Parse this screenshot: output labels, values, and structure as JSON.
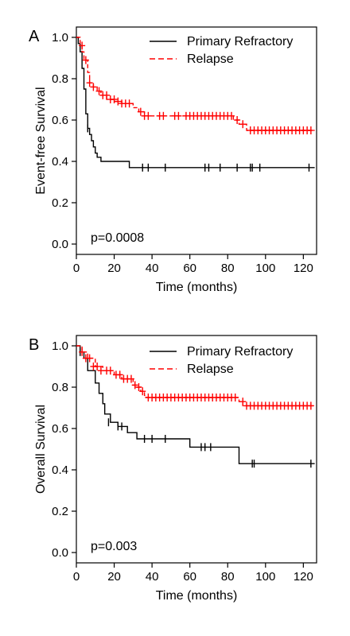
{
  "chart_data": [
    {
      "type": "line",
      "panel_label": "A",
      "xlabel": "Time (months)",
      "ylabel": "Event-free Survival",
      "xlim": [
        0,
        127
      ],
      "ylim": [
        -0.05,
        1.05
      ],
      "xticks": [
        "0",
        "20",
        "40",
        "60",
        "80",
        "100",
        "120"
      ],
      "yticks": [
        "0.0",
        "0.2",
        "0.4",
        "0.6",
        "0.8",
        "1.0"
      ],
      "annotation": "p=0.0008",
      "legend_position": "top-right",
      "series": [
        {
          "name": "Primary Refractory",
          "color": "#000000",
          "dashed": false,
          "steps": [
            [
              0,
              1.0
            ],
            [
              1,
              0.97
            ],
            [
              2,
              0.93
            ],
            [
              3,
              0.85
            ],
            [
              4,
              0.75
            ],
            [
              5,
              0.63
            ],
            [
              6,
              0.56
            ],
            [
              7,
              0.53
            ],
            [
              8,
              0.5
            ],
            [
              9,
              0.47
            ],
            [
              10,
              0.44
            ],
            [
              11,
              0.42
            ],
            [
              13,
              0.4
            ],
            [
              28,
              0.37
            ],
            [
              126,
              0.37
            ]
          ],
          "censored": [
            [
              6,
              0.56
            ],
            [
              35,
              0.37
            ],
            [
              38,
              0.37
            ],
            [
              47,
              0.37
            ],
            [
              68,
              0.37
            ],
            [
              70,
              0.37
            ],
            [
              76,
              0.37
            ],
            [
              85,
              0.37
            ],
            [
              92,
              0.37
            ],
            [
              93,
              0.37
            ],
            [
              97,
              0.37
            ],
            [
              123,
              0.37
            ]
          ]
        },
        {
          "name": "Relapse",
          "color": "#ff0000",
          "dashed": true,
          "steps": [
            [
              0,
              1.0
            ],
            [
              2,
              0.96
            ],
            [
              3,
              0.93
            ],
            [
              4,
              0.89
            ],
            [
              6,
              0.83
            ],
            [
              7,
              0.78
            ],
            [
              9,
              0.76
            ],
            [
              11,
              0.74
            ],
            [
              13,
              0.72
            ],
            [
              16,
              0.7
            ],
            [
              20,
              0.69
            ],
            [
              24,
              0.68
            ],
            [
              30,
              0.66
            ],
            [
              33,
              0.64
            ],
            [
              36,
              0.62
            ],
            [
              83,
              0.6
            ],
            [
              86,
              0.58
            ],
            [
              90,
              0.55
            ],
            [
              126,
              0.55
            ]
          ],
          "censored": [
            [
              3,
              0.96
            ],
            [
              5,
              0.89
            ],
            [
              7,
              0.78
            ],
            [
              9,
              0.76
            ],
            [
              12,
              0.74
            ],
            [
              14,
              0.72
            ],
            [
              16,
              0.72
            ],
            [
              18,
              0.7
            ],
            [
              20,
              0.7
            ],
            [
              22,
              0.69
            ],
            [
              24,
              0.68
            ],
            [
              26,
              0.68
            ],
            [
              28,
              0.68
            ],
            [
              34,
              0.64
            ],
            [
              36,
              0.62
            ],
            [
              38,
              0.62
            ],
            [
              44,
              0.62
            ],
            [
              46,
              0.62
            ],
            [
              52,
              0.62
            ],
            [
              54,
              0.62
            ],
            [
              58,
              0.62
            ],
            [
              60,
              0.62
            ],
            [
              62,
              0.62
            ],
            [
              64,
              0.62
            ],
            [
              66,
              0.62
            ],
            [
              68,
              0.62
            ],
            [
              70,
              0.62
            ],
            [
              72,
              0.62
            ],
            [
              74,
              0.62
            ],
            [
              76,
              0.62
            ],
            [
              78,
              0.62
            ],
            [
              80,
              0.62
            ],
            [
              82,
              0.62
            ],
            [
              85,
              0.6
            ],
            [
              88,
              0.58
            ],
            [
              92,
              0.55
            ],
            [
              94,
              0.55
            ],
            [
              96,
              0.55
            ],
            [
              98,
              0.55
            ],
            [
              100,
              0.55
            ],
            [
              102,
              0.55
            ],
            [
              104,
              0.55
            ],
            [
              106,
              0.55
            ],
            [
              108,
              0.55
            ],
            [
              110,
              0.55
            ],
            [
              112,
              0.55
            ],
            [
              114,
              0.55
            ],
            [
              116,
              0.55
            ],
            [
              118,
              0.55
            ],
            [
              120,
              0.55
            ],
            [
              122,
              0.55
            ],
            [
              124,
              0.55
            ]
          ]
        }
      ]
    },
    {
      "type": "line",
      "panel_label": "B",
      "xlabel": "Time (months)",
      "ylabel": "Overall Survival",
      "xlim": [
        0,
        127
      ],
      "ylim": [
        -0.05,
        1.05
      ],
      "xticks": [
        "0",
        "20",
        "40",
        "60",
        "80",
        "100",
        "120"
      ],
      "yticks": [
        "0.0",
        "0.2",
        "0.4",
        "0.6",
        "0.8",
        "1.0"
      ],
      "annotation": "p=0.003",
      "legend_position": "top-right",
      "series": [
        {
          "name": "Primary Refractory",
          "color": "#000000",
          "dashed": false,
          "steps": [
            [
              0,
              1.0
            ],
            [
              2,
              0.97
            ],
            [
              4,
              0.94
            ],
            [
              6,
              0.88
            ],
            [
              10,
              0.82
            ],
            [
              12,
              0.77
            ],
            [
              14,
              0.72
            ],
            [
              15,
              0.67
            ],
            [
              18,
              0.63
            ],
            [
              22,
              0.61
            ],
            [
              27,
              0.58
            ],
            [
              32,
              0.55
            ],
            [
              60,
              0.51
            ],
            [
              86,
              0.43
            ],
            [
              126,
              0.43
            ]
          ],
          "censored": [
            [
              2,
              0.97
            ],
            [
              17,
              0.63
            ],
            [
              22,
              0.61
            ],
            [
              24,
              0.61
            ],
            [
              36,
              0.55
            ],
            [
              40,
              0.55
            ],
            [
              47,
              0.55
            ],
            [
              66,
              0.51
            ],
            [
              68,
              0.51
            ],
            [
              71,
              0.51
            ],
            [
              93,
              0.43
            ],
            [
              94,
              0.43
            ],
            [
              124,
              0.43
            ]
          ]
        },
        {
          "name": "Relapse",
          "color": "#ff0000",
          "dashed": true,
          "steps": [
            [
              0,
              1.0
            ],
            [
              3,
              0.97
            ],
            [
              6,
              0.94
            ],
            [
              10,
              0.9
            ],
            [
              14,
              0.88
            ],
            [
              20,
              0.86
            ],
            [
              24,
              0.84
            ],
            [
              30,
              0.81
            ],
            [
              32,
              0.8
            ],
            [
              34,
              0.78
            ],
            [
              36,
              0.76
            ],
            [
              37,
              0.75
            ],
            [
              86,
              0.73
            ],
            [
              88,
              0.71
            ],
            [
              126,
              0.71
            ]
          ],
          "censored": [
            [
              3,
              0.97
            ],
            [
              5,
              0.94
            ],
            [
              7,
              0.94
            ],
            [
              9,
              0.9
            ],
            [
              11,
              0.9
            ],
            [
              13,
              0.88
            ],
            [
              16,
              0.88
            ],
            [
              18,
              0.88
            ],
            [
              21,
              0.86
            ],
            [
              23,
              0.86
            ],
            [
              25,
              0.84
            ],
            [
              27,
              0.84
            ],
            [
              29,
              0.84
            ],
            [
              31,
              0.81
            ],
            [
              33,
              0.8
            ],
            [
              35,
              0.78
            ],
            [
              38,
              0.75
            ],
            [
              40,
              0.75
            ],
            [
              42,
              0.75
            ],
            [
              44,
              0.75
            ],
            [
              46,
              0.75
            ],
            [
              48,
              0.75
            ],
            [
              50,
              0.75
            ],
            [
              52,
              0.75
            ],
            [
              54,
              0.75
            ],
            [
              56,
              0.75
            ],
            [
              58,
              0.75
            ],
            [
              60,
              0.75
            ],
            [
              62,
              0.75
            ],
            [
              64,
              0.75
            ],
            [
              66,
              0.75
            ],
            [
              68,
              0.75
            ],
            [
              70,
              0.75
            ],
            [
              72,
              0.75
            ],
            [
              74,
              0.75
            ],
            [
              76,
              0.75
            ],
            [
              78,
              0.75
            ],
            [
              80,
              0.75
            ],
            [
              82,
              0.75
            ],
            [
              84,
              0.75
            ],
            [
              88,
              0.73
            ],
            [
              90,
              0.71
            ],
            [
              92,
              0.71
            ],
            [
              94,
              0.71
            ],
            [
              96,
              0.71
            ],
            [
              98,
              0.71
            ],
            [
              100,
              0.71
            ],
            [
              102,
              0.71
            ],
            [
              104,
              0.71
            ],
            [
              106,
              0.71
            ],
            [
              108,
              0.71
            ],
            [
              110,
              0.71
            ],
            [
              112,
              0.71
            ],
            [
              114,
              0.71
            ],
            [
              116,
              0.71
            ],
            [
              118,
              0.71
            ],
            [
              120,
              0.71
            ],
            [
              122,
              0.71
            ],
            [
              124,
              0.71
            ]
          ]
        }
      ]
    }
  ]
}
